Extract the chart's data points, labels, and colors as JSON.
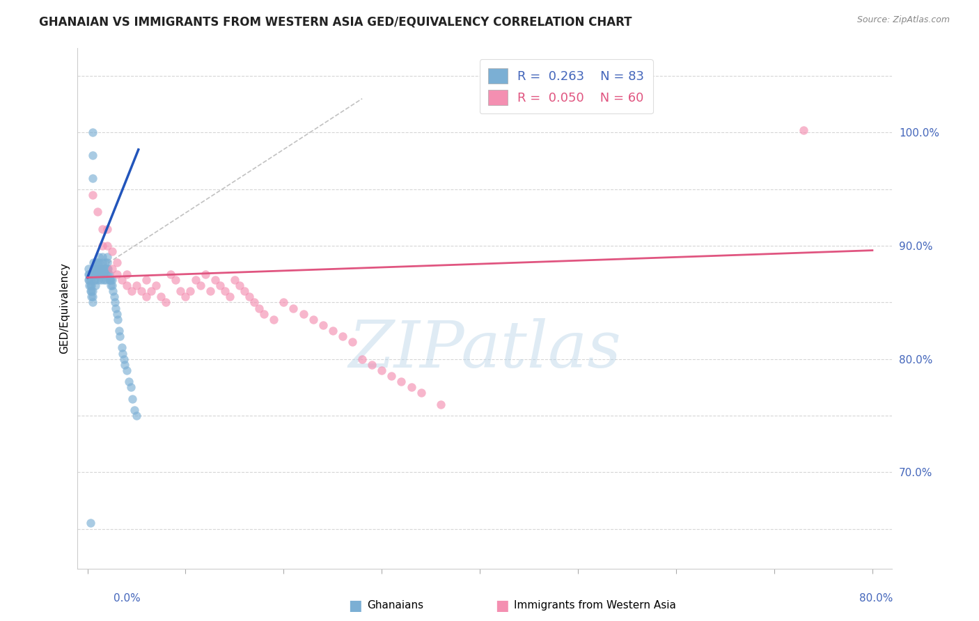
{
  "title": "GHANAIAN VS IMMIGRANTS FROM WESTERN ASIA GED/EQUIVALENCY CORRELATION CHART",
  "source": "Source: ZipAtlas.com",
  "ylabel": "GED/Equivalency",
  "xlim": [
    -0.01,
    0.82
  ],
  "ylim": [
    0.615,
    1.075
  ],
  "blue_R": 0.263,
  "blue_N": 83,
  "pink_R": 0.05,
  "pink_N": 60,
  "blue_color": "#7BAFD4",
  "pink_color": "#F48FB1",
  "blue_label": "Ghanaians",
  "pink_label": "Immigrants from Western Asia",
  "blue_scatter_x": [
    0.001,
    0.001,
    0.001,
    0.002,
    0.002,
    0.002,
    0.003,
    0.003,
    0.003,
    0.004,
    0.004,
    0.004,
    0.005,
    0.005,
    0.005,
    0.006,
    0.006,
    0.006,
    0.007,
    0.007,
    0.007,
    0.008,
    0.008,
    0.008,
    0.009,
    0.009,
    0.01,
    0.01,
    0.01,
    0.011,
    0.011,
    0.012,
    0.012,
    0.012,
    0.013,
    0.013,
    0.014,
    0.014,
    0.015,
    0.015,
    0.015,
    0.016,
    0.016,
    0.017,
    0.017,
    0.018,
    0.018,
    0.019,
    0.019,
    0.02,
    0.02,
    0.02,
    0.021,
    0.021,
    0.022,
    0.022,
    0.023,
    0.024,
    0.024,
    0.025,
    0.025,
    0.026,
    0.027,
    0.028,
    0.029,
    0.03,
    0.031,
    0.032,
    0.033,
    0.035,
    0.036,
    0.037,
    0.038,
    0.04,
    0.042,
    0.044,
    0.046,
    0.048,
    0.05,
    0.005,
    0.005,
    0.005,
    0.003
  ],
  "blue_scatter_y": [
    0.87,
    0.875,
    0.88,
    0.865,
    0.87,
    0.875,
    0.86,
    0.865,
    0.87,
    0.855,
    0.86,
    0.865,
    0.85,
    0.855,
    0.86,
    0.875,
    0.88,
    0.885,
    0.87,
    0.875,
    0.88,
    0.865,
    0.87,
    0.875,
    0.88,
    0.885,
    0.875,
    0.88,
    0.885,
    0.87,
    0.875,
    0.88,
    0.885,
    0.89,
    0.875,
    0.88,
    0.87,
    0.875,
    0.88,
    0.885,
    0.89,
    0.875,
    0.88,
    0.87,
    0.875,
    0.88,
    0.885,
    0.87,
    0.875,
    0.88,
    0.885,
    0.89,
    0.875,
    0.88,
    0.87,
    0.875,
    0.87,
    0.865,
    0.87,
    0.865,
    0.87,
    0.86,
    0.855,
    0.85,
    0.845,
    0.84,
    0.835,
    0.825,
    0.82,
    0.81,
    0.805,
    0.8,
    0.795,
    0.79,
    0.78,
    0.775,
    0.765,
    0.755,
    0.75,
    0.96,
    0.98,
    1.0,
    0.655
  ],
  "pink_scatter_x": [
    0.005,
    0.01,
    0.015,
    0.015,
    0.02,
    0.02,
    0.025,
    0.025,
    0.03,
    0.03,
    0.035,
    0.04,
    0.04,
    0.045,
    0.05,
    0.055,
    0.06,
    0.06,
    0.065,
    0.07,
    0.075,
    0.08,
    0.085,
    0.09,
    0.095,
    0.1,
    0.105,
    0.11,
    0.115,
    0.12,
    0.125,
    0.13,
    0.135,
    0.14,
    0.145,
    0.15,
    0.155,
    0.16,
    0.165,
    0.17,
    0.175,
    0.18,
    0.19,
    0.2,
    0.21,
    0.22,
    0.23,
    0.24,
    0.25,
    0.26,
    0.27,
    0.28,
    0.29,
    0.3,
    0.31,
    0.32,
    0.33,
    0.34,
    0.36,
    0.73
  ],
  "pink_scatter_y": [
    0.945,
    0.93,
    0.915,
    0.9,
    0.9,
    0.915,
    0.895,
    0.88,
    0.885,
    0.875,
    0.87,
    0.875,
    0.865,
    0.86,
    0.865,
    0.86,
    0.87,
    0.855,
    0.86,
    0.865,
    0.855,
    0.85,
    0.875,
    0.87,
    0.86,
    0.855,
    0.86,
    0.87,
    0.865,
    0.875,
    0.86,
    0.87,
    0.865,
    0.86,
    0.855,
    0.87,
    0.865,
    0.86,
    0.855,
    0.85,
    0.845,
    0.84,
    0.835,
    0.85,
    0.845,
    0.84,
    0.835,
    0.83,
    0.825,
    0.82,
    0.815,
    0.8,
    0.795,
    0.79,
    0.785,
    0.78,
    0.775,
    0.77,
    0.76,
    1.002
  ],
  "blue_trend_x": [
    0.0,
    0.052
  ],
  "blue_trend_y": [
    0.872,
    0.985
  ],
  "pink_trend_x": [
    0.0,
    0.8
  ],
  "pink_trend_y": [
    0.872,
    0.896
  ],
  "ref_line_x": [
    0.0,
    0.28
  ],
  "ref_line_y": [
    0.873,
    1.03
  ],
  "watermark_text": "ZIPatlas",
  "ytick_vals": [
    0.65,
    0.7,
    0.75,
    0.8,
    0.85,
    0.9,
    0.95,
    1.0,
    1.05
  ],
  "ytick_labels": [
    "",
    "70.0%",
    "",
    "80.0%",
    "",
    "90.0%",
    "",
    "100.0%",
    ""
  ],
  "xtick_vals": [
    0.0,
    0.1,
    0.2,
    0.3,
    0.4,
    0.5,
    0.6,
    0.7,
    0.8
  ],
  "right_axis_color": "#4466BB",
  "grid_color": "#cccccc",
  "title_color": "#222222",
  "source_color": "#888888"
}
